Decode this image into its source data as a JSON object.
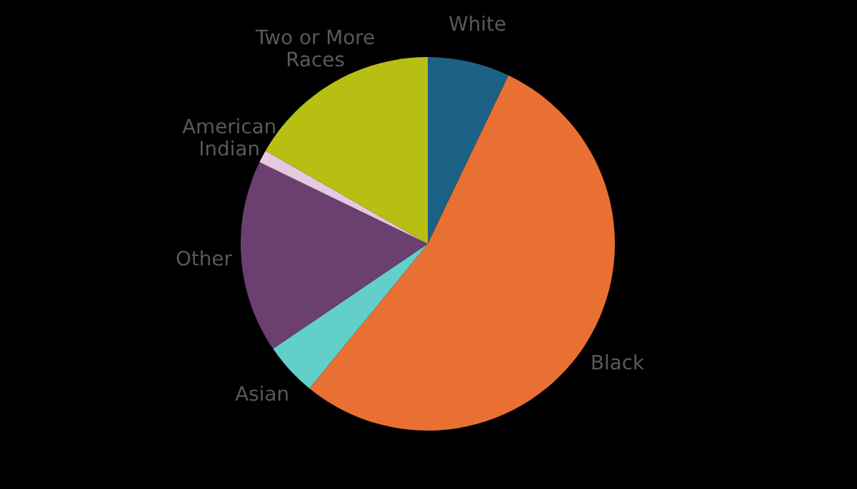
{
  "chart_data": {
    "type": "pie",
    "categories": [
      "White",
      "Black",
      "Asian",
      "Other",
      "American\nIndian",
      "Two or More\nRaces"
    ],
    "values": [
      7.1,
      53.8,
      4.6,
      16.7,
      1.1,
      16.7
    ],
    "colors": [
      "#1a6185",
      "#e87033",
      "#62cfc9",
      "#6b3f70",
      "#e6c8e0",
      "#b8bf13"
    ],
    "legend": false
  }
}
